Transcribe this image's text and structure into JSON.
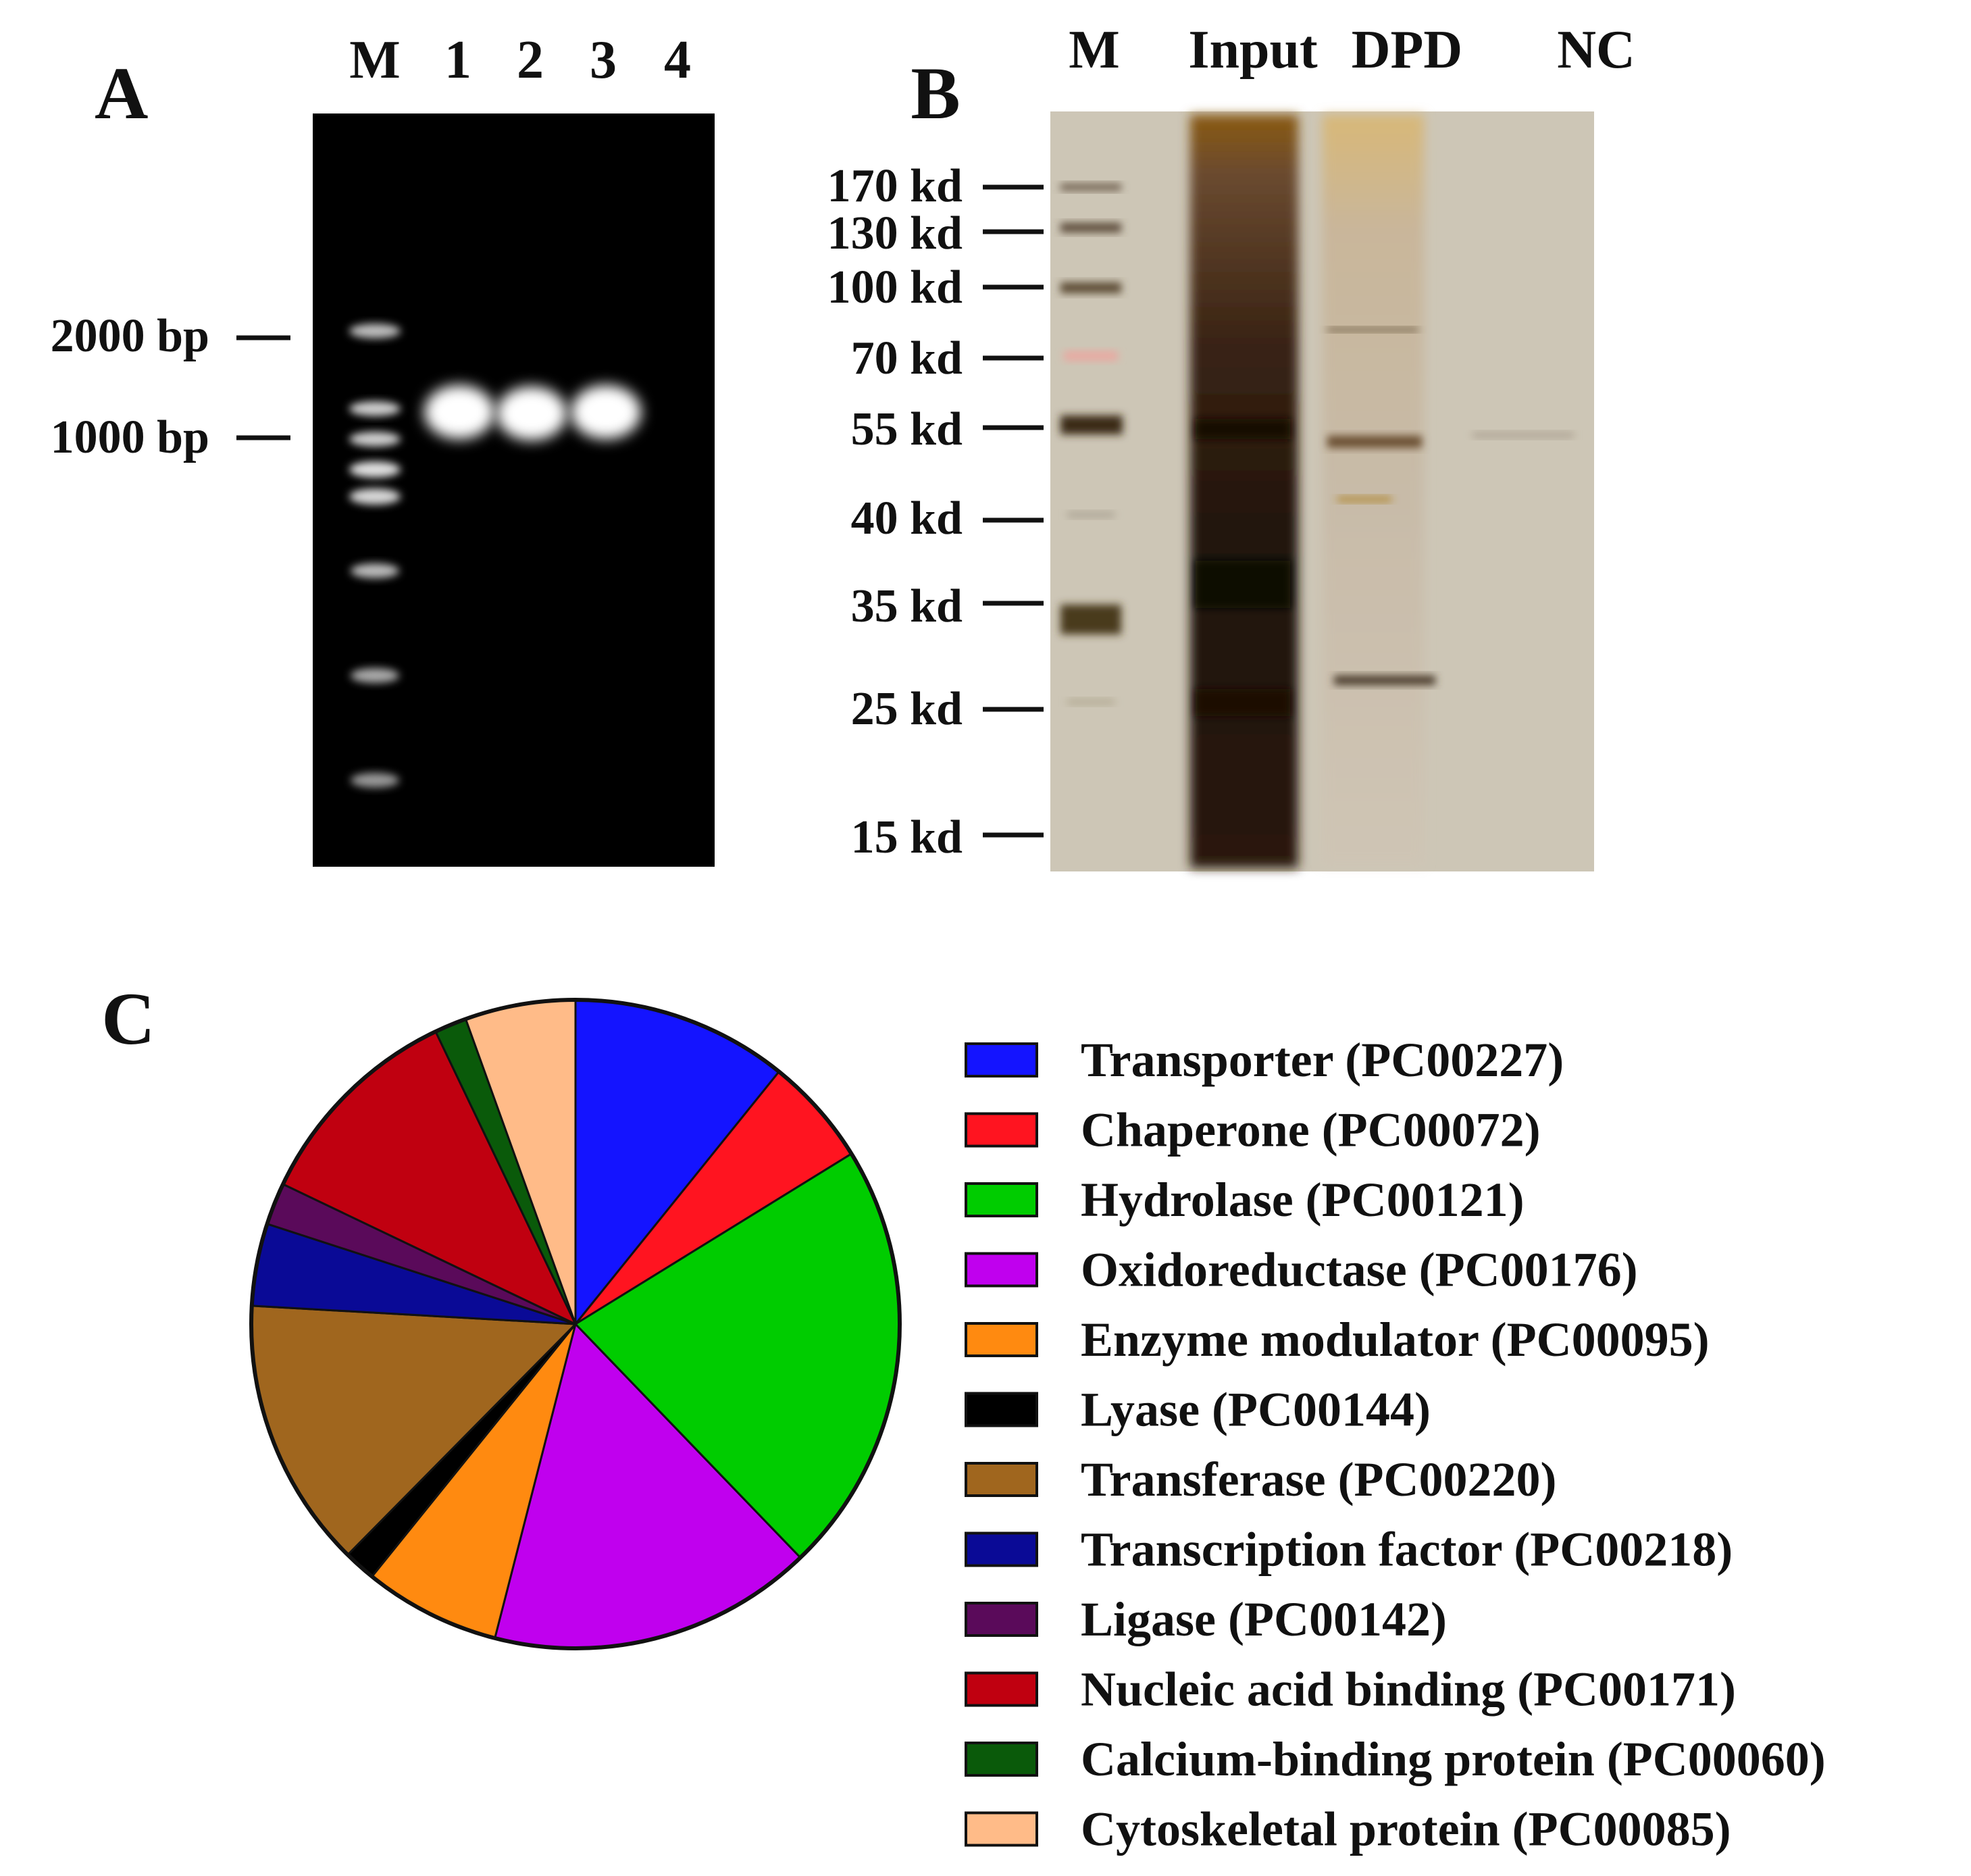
{
  "panels": {
    "a": {
      "letter": "A",
      "lanes": [
        "M",
        "1",
        "2",
        "3",
        "4"
      ],
      "size_markers": [
        "2000 bp",
        "1000 bp"
      ]
    },
    "b": {
      "letter": "B",
      "lanes": [
        "M",
        "Input",
        "DPD",
        "NC"
      ],
      "size_markers": [
        "170 kd",
        "130 kd",
        "100 kd",
        "70 kd",
        "55 kd",
        "40 kd",
        "35 kd",
        "25 kd",
        "15 kd"
      ]
    },
    "c": {
      "letter": "C"
    }
  },
  "chart_data": {
    "type": "pie",
    "legend_position": "right",
    "slices": [
      {
        "label": "Transporter (PC00227)",
        "value": 10.8,
        "color": "#1414ff"
      },
      {
        "label": "Chaperone (PC00072)",
        "value": 5.4,
        "color": "#ff1420"
      },
      {
        "label": "Hydrolase (PC00121)",
        "value": 21.6,
        "color": "#00cc00"
      },
      {
        "label": "Oxidoreductase (PC00176)",
        "value": 16.2,
        "color": "#c000ee"
      },
      {
        "label": "Enzyme modulator (PC00095)",
        "value": 6.8,
        "color": "#ff8a10"
      },
      {
        "label": "Lyase (PC00144)",
        "value": 1.6,
        "color": "#000000"
      },
      {
        "label": "Transferase (PC00220)",
        "value": 13.5,
        "color": "#a0661e"
      },
      {
        "label": "Transcription factor (PC00218)",
        "value": 4.1,
        "color": "#0a0a96"
      },
      {
        "label": "Ligase (PC00142)",
        "value": 2.1,
        "color": "#5a0a5a"
      },
      {
        "label": "Nucleic acid binding (PC00171)",
        "value": 10.8,
        "color": "#c00010"
      },
      {
        "label": "Calcium-binding protein (PC00060)",
        "value": 1.6,
        "color": "#0a5a0a"
      },
      {
        "label": "Cytoskeletal protein (PC00085)",
        "value": 5.5,
        "color": "#ffbb88"
      }
    ]
  }
}
